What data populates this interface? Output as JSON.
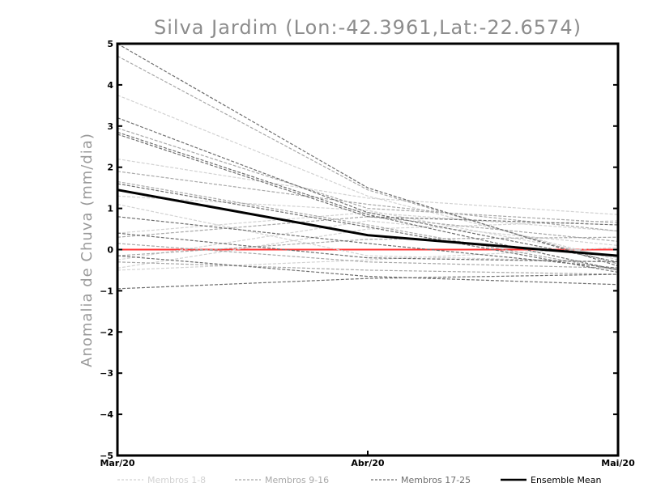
{
  "chart_data": {
    "type": "line",
    "title": "Silva Jardim (Lon:-42.3961,Lat:-22.6574)",
    "xlabel": "",
    "ylabel": "Anomalia de Chuva (mm/dia)",
    "categories": [
      "Mar/20",
      "Abr/20",
      "Mai/20"
    ],
    "ylim": [
      -5,
      5
    ],
    "yticks": [
      -5,
      -4,
      -3,
      -2,
      -1,
      0,
      1,
      2,
      3,
      4,
      5
    ],
    "zero_line_color": "#ff3333",
    "legend": [
      {
        "label": "Membros 1-8",
        "color": "#d2d2d2",
        "dashed": true
      },
      {
        "label": "Membros 9-16",
        "color": "#a8a8a8",
        "dashed": true
      },
      {
        "label": "Membros 17-25",
        "color": "#6e6e6e",
        "dashed": true
      },
      {
        "label": "Ensemble Mean",
        "color": "#000000",
        "dashed": false
      }
    ],
    "series": [
      {
        "name": "Membros 1-8",
        "color": "#d2d2d2",
        "members": [
          [
            3.75,
            1.3,
            -0.25
          ],
          [
            2.2,
            1.25,
            0.85
          ],
          [
            1.3,
            0.95,
            -0.2
          ],
          [
            0.4,
            0.9,
            0.45
          ],
          [
            -0.25,
            0.7,
            0.1
          ],
          [
            -0.45,
            0.5,
            0.7
          ],
          [
            1.1,
            -0.15,
            -0.3
          ],
          [
            -0.5,
            -0.25,
            0.05
          ]
        ]
      },
      {
        "name": "Membros 9-16",
        "color": "#a8a8a8",
        "members": [
          [
            4.7,
            1.45,
            -0.35
          ],
          [
            2.95,
            1.0,
            0.65
          ],
          [
            1.9,
            1.1,
            0.45
          ],
          [
            1.65,
            0.6,
            -0.5
          ],
          [
            0.3,
            0.8,
            0.2
          ],
          [
            -0.15,
            0.25,
            0.3
          ],
          [
            0.15,
            -0.3,
            -0.45
          ],
          [
            -0.3,
            -0.5,
            -0.6
          ]
        ]
      },
      {
        "name": "Membros 17-25",
        "color": "#6e6e6e",
        "members": [
          [
            5.0,
            1.5,
            -0.4
          ],
          [
            3.2,
            0.9,
            -0.3
          ],
          [
            2.85,
            0.85,
            -0.5
          ],
          [
            2.8,
            0.8,
            0.6
          ],
          [
            1.6,
            0.55,
            -0.55
          ],
          [
            0.8,
            0.15,
            -0.45
          ],
          [
            0.4,
            -0.2,
            -0.3
          ],
          [
            -0.15,
            -0.65,
            -0.85
          ],
          [
            -0.95,
            -0.7,
            -0.6
          ]
        ]
      },
      {
        "name": "Ensemble Mean",
        "color": "#000000",
        "values": [
          1.45,
          0.35,
          -0.15
        ]
      }
    ]
  }
}
